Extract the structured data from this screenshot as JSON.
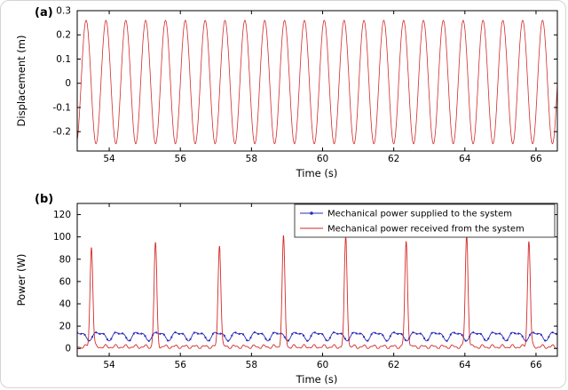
{
  "figure": {
    "background": "#ffffff",
    "border_color": "#d4d4d4"
  },
  "panels": [
    {
      "label": "(a)"
    },
    {
      "label": "(b)"
    }
  ],
  "chart_data": [
    {
      "type": "line",
      "panel": "a",
      "title": "",
      "xlabel": "Time (s)",
      "ylabel": "Displacement (m)",
      "xlim": [
        53.1,
        66.6
      ],
      "ylim": [
        -0.28,
        0.3
      ],
      "xticks": [
        54,
        56,
        58,
        60,
        62,
        64,
        66
      ],
      "yticks": [
        -0.2,
        -0.1,
        0,
        0.1,
        0.2,
        0.3
      ],
      "grid": false,
      "legend": null,
      "series": [
        {
          "name": "Displacement",
          "color": "#d42a2a",
          "kind": "sine",
          "offset": 0.005,
          "amplitude": 0.255,
          "period": 0.558,
          "peak_time": 53.35,
          "width": 0.8,
          "note": "steady sinusoidal oscillation, max ~0.26 m, min ~-0.25 m, ~24 cycles across 53.1-66.6 s"
        }
      ]
    },
    {
      "type": "line",
      "panel": "b",
      "title": "",
      "xlabel": "Time (s)",
      "ylabel": "Power (W)",
      "xlim": [
        53.1,
        66.6
      ],
      "ylim": [
        -7,
        130
      ],
      "xticks": [
        54,
        56,
        58,
        60,
        62,
        64,
        66
      ],
      "yticks": [
        0,
        20,
        40,
        60,
        80,
        100,
        120
      ],
      "grid": false,
      "legend_position": "top-right",
      "series": [
        {
          "name": "Mechanical power supplied to the system",
          "color": "#2a2ac0",
          "kind": "ripple",
          "mean": 11.5,
          "ripples": [
            {
              "amplitude": 3.2,
              "period": 0.558,
              "phase": 0
            },
            {
              "amplitude": 1.6,
              "period": 0.279,
              "phase": 1.2
            }
          ],
          "marker": "dot",
          "width": 0.9,
          "note": "oscillates between ~7 W and ~16 W around a ~12 W mean"
        },
        {
          "name": "Mechanical power received from the system",
          "color": "#d42a2a",
          "kind": "spiky",
          "base_mean": 1.5,
          "base_ripples": [
            {
              "amplitude": 1.3,
              "period": 0.279,
              "phase": 0.4
            },
            {
              "amplitude": 0.7,
              "period": 0.143,
              "phase": 2.1
            }
          ],
          "spike_width": 0.055,
          "spikes": [
            {
              "t": 53.5,
              "peak": 90
            },
            {
              "t": 55.3,
              "peak": 92
            },
            {
              "t": 57.1,
              "peak": 92
            },
            {
              "t": 58.9,
              "peak": 98
            },
            {
              "t": 60.65,
              "peak": 98
            },
            {
              "t": 62.35,
              "peak": 94
            },
            {
              "t": 64.05,
              "peak": 100
            },
            {
              "t": 65.8,
              "peak": 95
            }
          ],
          "width": 0.9,
          "note": "near-zero baseline with narrow spikes of ~90-100 W roughly every 1.8 s"
        }
      ]
    }
  ]
}
